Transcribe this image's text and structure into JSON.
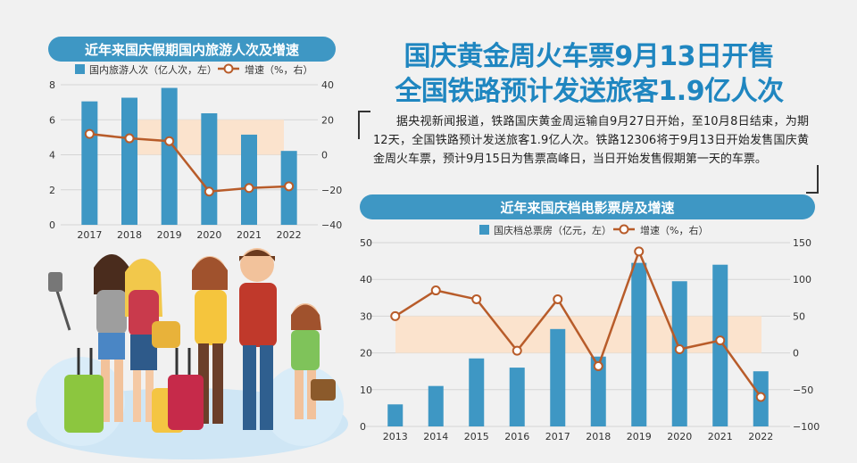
{
  "headline": {
    "line1": "国庆黄金周火车票9月13日开售",
    "line2": "全国铁路预计发送旅客1.9亿人次"
  },
  "news_body": "据央视新闻报道，铁路国庆黄金周运输自9月27日开始，至10月8日结束，为期12天，全国铁路预计发送旅客1.9亿人次。铁路12306将于9月13日开始发售国庆黄金周火车票，预计9月15日为售票高峰日，当日开始发售假期第一天的车票。",
  "colors": {
    "bar": "#3e97c4",
    "line": "#b85c2a",
    "band": "#fbe3cd",
    "heading": "#1f86c0"
  },
  "chart_data": [
    {
      "type": "bar+line",
      "title": "近年来国庆假期国内旅游人次及增速",
      "categories": [
        "2017",
        "2018",
        "2019",
        "2020",
        "2021",
        "2022"
      ],
      "series": [
        {
          "name": "国内旅游人次（亿人次，左）",
          "type": "bar",
          "axis": "left",
          "values": [
            7.05,
            7.26,
            7.82,
            6.37,
            5.15,
            4.22
          ]
        },
        {
          "name": "增速（%，右）",
          "type": "line",
          "axis": "right",
          "values": [
            11.9,
            9.4,
            7.8,
            -21.0,
            -19.0,
            -18.0
          ]
        }
      ],
      "left_axis": {
        "ticks": [
          "0",
          "2",
          "4",
          "6",
          "8"
        ],
        "range": [
          0,
          8
        ]
      },
      "right_axis": {
        "ticks": [
          "−40",
          "−20",
          "0",
          "20",
          "40"
        ],
        "range": [
          -40,
          40
        ]
      },
      "legend": "top"
    },
    {
      "type": "bar+line",
      "title": "近年来国庆档电影票房及增速",
      "categories": [
        "2013",
        "2014",
        "2015",
        "2016",
        "2017",
        "2018",
        "2019",
        "2020",
        "2021",
        "2022"
      ],
      "series": [
        {
          "name": "国庆档总票房（亿元，左）",
          "type": "bar",
          "axis": "left",
          "values": [
            6,
            11,
            18.5,
            16,
            26.5,
            19,
            44.5,
            39.5,
            44,
            15
          ]
        },
        {
          "name": "增速（%，右）",
          "type": "line",
          "axis": "right",
          "values": [
            50,
            85,
            73,
            3,
            73,
            -18,
            138,
            5,
            17,
            -60
          ]
        }
      ],
      "left_axis": {
        "ticks": [
          "0",
          "10",
          "20",
          "30",
          "40",
          "50"
        ],
        "range": [
          0,
          50
        ]
      },
      "right_axis": {
        "ticks": [
          "−100",
          "−50",
          "0",
          "50",
          "100",
          "150"
        ],
        "range": [
          -100,
          150
        ]
      },
      "legend": "top"
    }
  ]
}
